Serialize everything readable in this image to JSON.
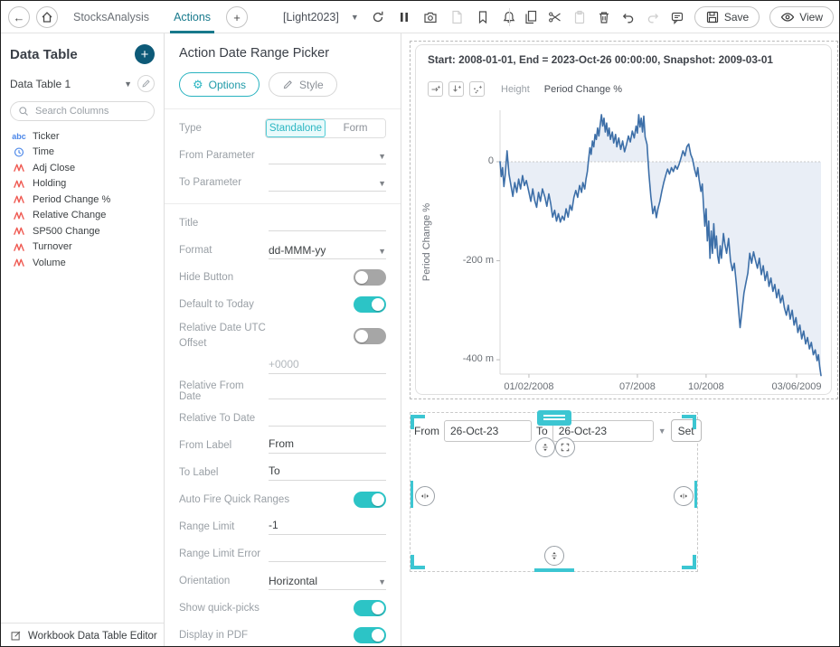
{
  "toolbar": {
    "tabs": [
      {
        "label": "StocksAnalysis",
        "active": false
      },
      {
        "label": "Actions",
        "active": true
      }
    ],
    "workbook_name": "[Light2023]",
    "save_label": "Save",
    "view_label": "View"
  },
  "sidebar": {
    "title": "Data Table",
    "table_name": "Data Table 1",
    "search_placeholder": "Search Columns",
    "columns": [
      {
        "type": "text",
        "label": "Ticker"
      },
      {
        "type": "time",
        "label": "Time"
      },
      {
        "type": "numeric",
        "label": "Adj Close"
      },
      {
        "type": "numeric",
        "label": "Holding"
      },
      {
        "type": "numeric",
        "label": "Period Change %"
      },
      {
        "type": "numeric",
        "label": "Relative Change"
      },
      {
        "type": "numeric",
        "label": "SP500 Change"
      },
      {
        "type": "numeric",
        "label": "Turnover"
      },
      {
        "type": "numeric",
        "label": "Volume"
      }
    ],
    "footer_label": "Workbook Data Table Editor"
  },
  "panel": {
    "title": "Action Date Range Picker",
    "options_label": "Options",
    "style_label": "Style"
  },
  "settings": {
    "type": {
      "label": "Type",
      "options": [
        "Standalone",
        "Form"
      ],
      "selected": "Standalone"
    },
    "from_parameter": {
      "label": "From Parameter",
      "value": ""
    },
    "to_parameter": {
      "label": "To Parameter",
      "value": ""
    },
    "title_field": {
      "label": "Title",
      "value": ""
    },
    "format": {
      "label": "Format",
      "value": "dd-MMM-yy"
    },
    "hide_button": {
      "label": "Hide Button",
      "on": false
    },
    "default_to_today": {
      "label": "Default to Today",
      "on": true
    },
    "relative_utc": {
      "label": "Relative Date UTC Offset",
      "on": false,
      "placeholder": "+0000"
    },
    "relative_from": {
      "label": "Relative From Date",
      "value": ""
    },
    "relative_to": {
      "label": "Relative To Date",
      "value": ""
    },
    "from_label": {
      "label": "From Label",
      "value": "From"
    },
    "to_label": {
      "label": "To Label",
      "value": "To"
    },
    "auto_fire": {
      "label": "Auto Fire Quick Ranges",
      "on": true
    },
    "range_limit": {
      "label": "Range Limit",
      "value": "-1"
    },
    "range_limit_error": {
      "label": "Range Limit Error",
      "value": ""
    },
    "orientation": {
      "label": "Orientation",
      "value": "Horizontal"
    },
    "show_quick_picks": {
      "label": "Show quick-picks",
      "on": true
    },
    "display_in_pdf": {
      "label": "Display in PDF",
      "on": true
    }
  },
  "chart": {
    "title": "Start: 2008-01-01, End = 2023-Oct-26 00:00:00, Snapshot: 2009-03-01",
    "height_label": "Height",
    "height_value": "Period Change %"
  },
  "chart_data": {
    "type": "line",
    "title": "Start: 2008-01-01, End = 2023-Oct-26 00:00:00, Snapshot: 2009-03-01",
    "xlabel": "",
    "ylabel": "Period Change %",
    "unit": "m (millions)",
    "ylim": [
      -429,
      104
    ],
    "baseline": 0,
    "grid": "dotted zero line only",
    "legend": "none",
    "line_color": "#3d6fa8",
    "fill_color": "#e9eef6",
    "y_ticks": [
      {
        "v": 0,
        "label": "0"
      },
      {
        "v": -200,
        "label": "-200 m"
      },
      {
        "v": -400,
        "label": "-400 m"
      }
    ],
    "x_ticks": [
      {
        "x": 0.09,
        "label": "01/02/2008"
      },
      {
        "x": 0.428,
        "label": "07/2008"
      },
      {
        "x": 0.642,
        "label": "10/2008"
      },
      {
        "x": 0.924,
        "label": "03/06/2009"
      }
    ],
    "series": [
      {
        "name": "Period Change %",
        "points": [
          [
            0,
            0
          ],
          [
            0.004,
            -30
          ],
          [
            0.008,
            -12
          ],
          [
            0.012,
            -50
          ],
          [
            0.016,
            -28
          ],
          [
            0.022,
            22
          ],
          [
            0.028,
            -25
          ],
          [
            0.034,
            -48
          ],
          [
            0.04,
            -70
          ],
          [
            0.046,
            -42
          ],
          [
            0.052,
            -62
          ],
          [
            0.058,
            -35
          ],
          [
            0.064,
            -55
          ],
          [
            0.07,
            -28
          ],
          [
            0.076,
            -48
          ],
          [
            0.082,
            -38
          ],
          [
            0.09,
            -62
          ],
          [
            0.096,
            -80
          ],
          [
            0.102,
            -55
          ],
          [
            0.108,
            -78
          ],
          [
            0.114,
            -92
          ],
          [
            0.12,
            -62
          ],
          [
            0.126,
            -80
          ],
          [
            0.132,
            -55
          ],
          [
            0.14,
            -72
          ],
          [
            0.146,
            -90
          ],
          [
            0.152,
            -65
          ],
          [
            0.158,
            -85
          ],
          [
            0.164,
            -112
          ],
          [
            0.17,
            -98
          ],
          [
            0.176,
            -120
          ],
          [
            0.182,
            -105
          ],
          [
            0.188,
            -122
          ],
          [
            0.194,
            -110
          ],
          [
            0.2,
            -118
          ],
          [
            0.206,
            -95
          ],
          [
            0.212,
            -112
          ],
          [
            0.218,
            -88
          ],
          [
            0.224,
            -98
          ],
          [
            0.23,
            -72
          ],
          [
            0.236,
            -58
          ],
          [
            0.242,
            -72
          ],
          [
            0.248,
            -48
          ],
          [
            0.254,
            -62
          ],
          [
            0.258,
            -42
          ],
          [
            0.264,
            -55
          ],
          [
            0.268,
            -35
          ],
          [
            0.272,
            -20
          ],
          [
            0.276,
            5
          ],
          [
            0.28,
            28
          ],
          [
            0.284,
            15
          ],
          [
            0.288,
            42
          ],
          [
            0.292,
            30
          ],
          [
            0.296,
            55
          ],
          [
            0.3,
            45
          ],
          [
            0.304,
            68
          ],
          [
            0.308,
            52
          ],
          [
            0.312,
            75
          ],
          [
            0.316,
            95
          ],
          [
            0.32,
            72
          ],
          [
            0.324,
            88
          ],
          [
            0.328,
            60
          ],
          [
            0.332,
            78
          ],
          [
            0.336,
            52
          ],
          [
            0.34,
            68
          ],
          [
            0.344,
            45
          ],
          [
            0.35,
            60
          ],
          [
            0.354,
            38
          ],
          [
            0.36,
            55
          ],
          [
            0.364,
            30
          ],
          [
            0.37,
            48
          ],
          [
            0.376,
            25
          ],
          [
            0.382,
            42
          ],
          [
            0.388,
            20
          ],
          [
            0.394,
            35
          ],
          [
            0.4,
            52
          ],
          [
            0.406,
            40
          ],
          [
            0.412,
            62
          ],
          [
            0.418,
            48
          ],
          [
            0.424,
            72
          ],
          [
            0.428,
            58
          ],
          [
            0.432,
            95
          ],
          [
            0.436,
            70
          ],
          [
            0.44,
            88
          ],
          [
            0.444,
            60
          ],
          [
            0.448,
            92
          ],
          [
            0.452,
            50
          ],
          [
            0.458,
            35
          ],
          [
            0.464,
            -25
          ],
          [
            0.47,
            -70
          ],
          [
            0.476,
            -105
          ],
          [
            0.482,
            -90
          ],
          [
            0.487,
            -113
          ],
          [
            0.492,
            -95
          ],
          [
            0.498,
            -80
          ],
          [
            0.504,
            -60
          ],
          [
            0.51,
            -42
          ],
          [
            0.516,
            -28
          ],
          [
            0.522,
            -15
          ],
          [
            0.528,
            -25
          ],
          [
            0.534,
            -12
          ],
          [
            0.54,
            -20
          ],
          [
            0.546,
            -8
          ],
          [
            0.552,
            -15
          ],
          [
            0.558,
            -5
          ],
          [
            0.564,
            8
          ],
          [
            0.57,
            22
          ],
          [
            0.576,
            12
          ],
          [
            0.582,
            30
          ],
          [
            0.588,
            36
          ],
          [
            0.594,
            15
          ],
          [
            0.6,
            5
          ],
          [
            0.606,
            -15
          ],
          [
            0.612,
            -30
          ],
          [
            0.616,
            -12
          ],
          [
            0.62,
            -35
          ],
          [
            0.626,
            -60
          ],
          [
            0.63,
            -45
          ],
          [
            0.634,
            -90
          ],
          [
            0.638,
            -130
          ],
          [
            0.642,
            -95
          ],
          [
            0.646,
            -160
          ],
          [
            0.65,
            -120
          ],
          [
            0.654,
            -195
          ],
          [
            0.658,
            -140
          ],
          [
            0.662,
            -185
          ],
          [
            0.666,
            -125
          ],
          [
            0.67,
            -175
          ],
          [
            0.674,
            -150
          ],
          [
            0.678,
            -190
          ],
          [
            0.682,
            -205
          ],
          [
            0.686,
            -170
          ],
          [
            0.69,
            -195
          ],
          [
            0.696,
            -145
          ],
          [
            0.7,
            -165
          ],
          [
            0.706,
            -185
          ],
          [
            0.712,
            -155
          ],
          [
            0.718,
            -200
          ],
          [
            0.724,
            -220
          ],
          [
            0.73,
            -205
          ],
          [
            0.736,
            -245
          ],
          [
            0.742,
            -290
          ],
          [
            0.748,
            -335
          ],
          [
            0.754,
            -300
          ],
          [
            0.76,
            -265
          ],
          [
            0.766,
            -245
          ],
          [
            0.772,
            -225
          ],
          [
            0.778,
            -185
          ],
          [
            0.784,
            -205
          ],
          [
            0.79,
            -182
          ],
          [
            0.796,
            -200
          ],
          [
            0.802,
            -215
          ],
          [
            0.808,
            -195
          ],
          [
            0.814,
            -228
          ],
          [
            0.82,
            -210
          ],
          [
            0.826,
            -240
          ],
          [
            0.832,
            -222
          ],
          [
            0.838,
            -252
          ],
          [
            0.844,
            -235
          ],
          [
            0.85,
            -262
          ],
          [
            0.856,
            -248
          ],
          [
            0.862,
            -275
          ],
          [
            0.868,
            -258
          ],
          [
            0.874,
            -285
          ],
          [
            0.88,
            -270
          ],
          [
            0.886,
            -295
          ],
          [
            0.892,
            -310
          ],
          [
            0.898,
            -290
          ],
          [
            0.904,
            -318
          ],
          [
            0.91,
            -300
          ],
          [
            0.916,
            -330
          ],
          [
            0.922,
            -315
          ],
          [
            0.928,
            -345
          ],
          [
            0.934,
            -330
          ],
          [
            0.94,
            -358
          ],
          [
            0.946,
            -342
          ],
          [
            0.952,
            -368
          ],
          [
            0.958,
            -355
          ],
          [
            0.964,
            -378
          ],
          [
            0.97,
            -365
          ],
          [
            0.976,
            -390
          ],
          [
            0.982,
            -380
          ],
          [
            0.988,
            -402
          ],
          [
            0.992,
            -390
          ],
          [
            0.996,
            -415
          ],
          [
            1,
            -432
          ]
        ]
      }
    ]
  },
  "picker": {
    "from_label": "From",
    "from_value": "26-Oct-23",
    "to_label": "To",
    "to_value": "26-Oct-23",
    "set_label": "Set"
  },
  "colors": {
    "accent_teal": "#2cc4c6",
    "selection_teal": "#3cc6d2",
    "tab_active": "#17798c",
    "add_button": "#0d5a78",
    "numeric_icon": "#ef5a52",
    "text_icon_blue": "#4a86e8",
    "chart_line": "#3d6fa8",
    "chart_fill": "#e9eef6"
  },
  "icons": [
    "back-icon",
    "home-icon",
    "add-tab-icon",
    "chevron-down-icon",
    "refresh-icon",
    "pause-icon",
    "camera-icon",
    "pdf-icon",
    "bookmark-icon",
    "bell-icon",
    "copy-icon",
    "cut-icon",
    "paste-icon",
    "trash-icon",
    "undo-icon",
    "redo-icon",
    "comment-icon",
    "save-icon",
    "eye-icon",
    "search-icon",
    "pencil-icon",
    "text-column-icon",
    "time-column-icon",
    "numeric-column-icon",
    "gear-icon",
    "brush-icon",
    "add-right-icon",
    "add-down-icon",
    "add-points-icon",
    "v-resize-icon",
    "expand-icon",
    "h-resize-icon",
    "grip-handle"
  ]
}
